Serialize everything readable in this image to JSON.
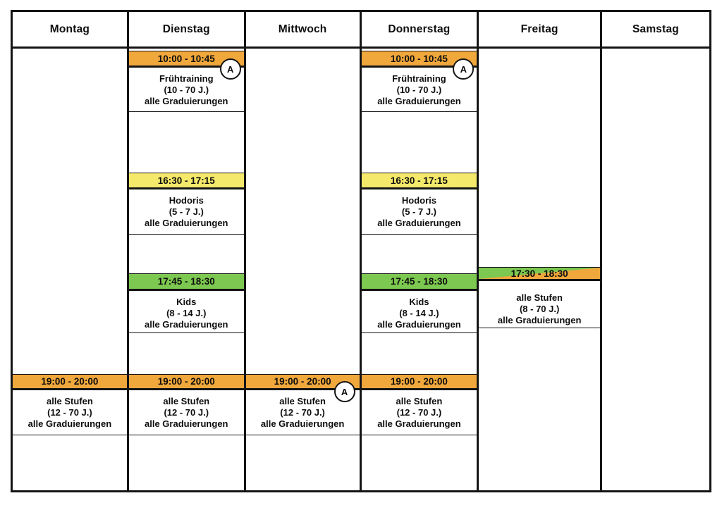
{
  "colors": {
    "orange": "#F0A73C",
    "yellow": "#F4E96A",
    "green": "#7CC850",
    "line": "#141414"
  },
  "badge_label": "A",
  "days": [
    {
      "label": "Montag"
    },
    {
      "label": "Dienstag"
    },
    {
      "label": "Mittwoch"
    },
    {
      "label": "Donnerstag"
    },
    {
      "label": "Freitag"
    },
    {
      "label": "Samstag"
    }
  ],
  "events": {
    "fruehtraining": {
      "time": "10:00 - 10:45",
      "title": "Frühtraining",
      "age": "(10 - 70 J.)",
      "grades": "alle Graduierungen"
    },
    "hodoris": {
      "time": "16:30 - 17:15",
      "title": "Hodoris",
      "age": "(5 - 7 J.)",
      "grades": "alle Graduierungen"
    },
    "kids": {
      "time": "17:45 - 18:30",
      "title": "Kids",
      "age": "(8 - 14 J.)",
      "grades": "alle Graduierungen"
    },
    "freitag_alle_stufen": {
      "time": "17:30 - 18:30",
      "title": "alle Stufen",
      "age": "(8 - 70 J.)",
      "grades": "alle Graduierungen"
    },
    "abendtraining": {
      "time": "19:00 - 20:00",
      "title": "alle Stufen",
      "age": "(12 - 70 J.)",
      "grades": "alle Graduierungen"
    }
  }
}
